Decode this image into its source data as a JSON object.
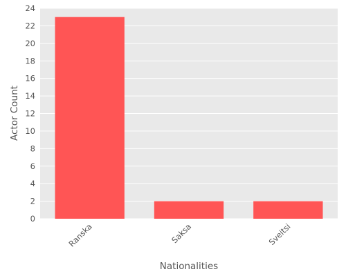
{
  "chart_data": {
    "type": "bar",
    "title": "",
    "xlabel": "Nationalities",
    "ylabel": "Actor Count",
    "categories": [
      "Ranska",
      "Saksa",
      "Sveitsi"
    ],
    "values": [
      23,
      2,
      2
    ],
    "ylim": [
      0,
      24
    ],
    "yticks": [
      0,
      2,
      4,
      6,
      8,
      10,
      12,
      14,
      16,
      18,
      20,
      22,
      24
    ],
    "grid": true,
    "legend": "none",
    "colors": {
      "bar": "#ff5555",
      "panel": "#e9e9e9",
      "grid": "#ffffff",
      "text": "#555555"
    }
  }
}
